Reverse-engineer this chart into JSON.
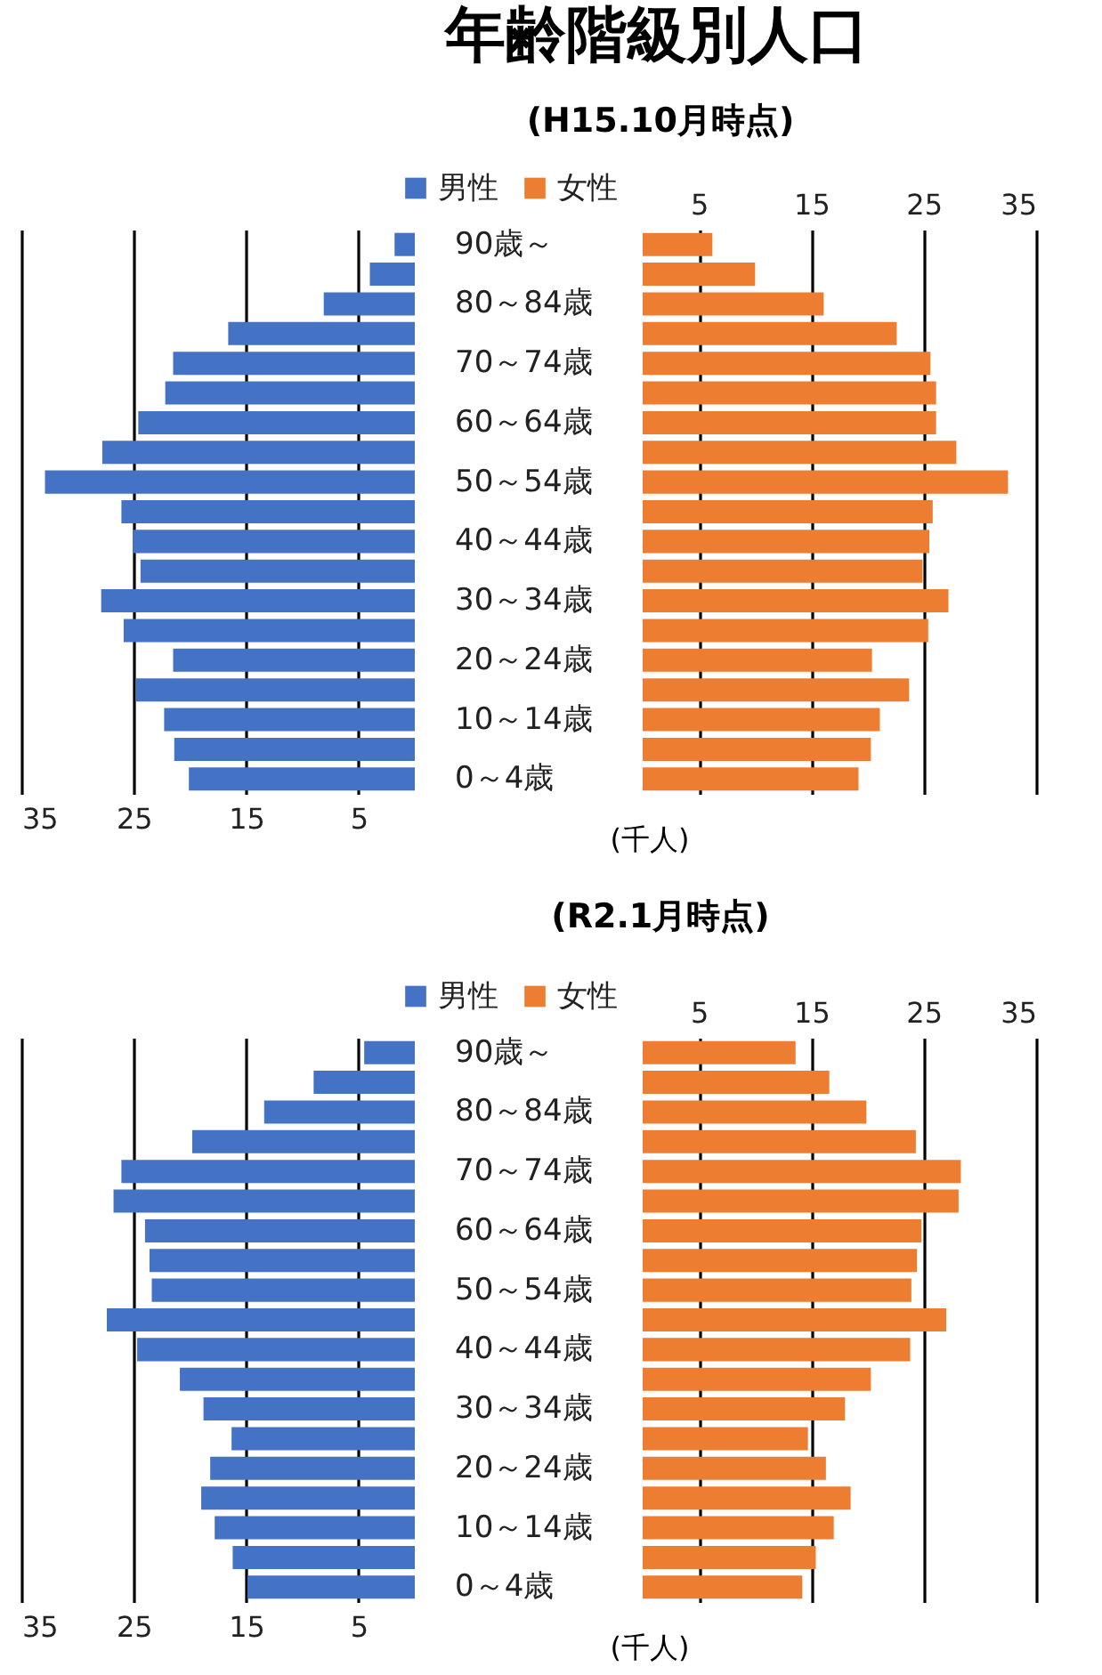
{
  "chart_data": [
    {
      "type": "bar",
      "orientation": "horizontal",
      "categories": [
        null,
        null,
        null,
        null,
        null,
        null,
        null,
        null,
        null,
        null,
        null,
        null,
        null,
        null,
        null,
        null,
        null,
        null,
        null
      ],
      "series": [
        {
          "name": "男性",
          "color": "#4472c4",
          "values": [
            1.8,
            4.0,
            8.1,
            16.6,
            21.5,
            22.2,
            24.6,
            27.8,
            32.9,
            26.1,
            25.1,
            24.4,
            27.9,
            25.9,
            21.5,
            24.8,
            22.3,
            21.4,
            20.1
          ]
        }
      ],
      "xlim": [
        35,
        0
      ],
      "xticks": [
        35,
        25,
        15,
        5
      ],
      "grid": "x",
      "tick_labels": "x"
    },
    {
      "type": "bar",
      "orientation": "horizontal",
      "title": "年齢階級別人口",
      "subtitle": "(H15.10月時点)",
      "annotations": [
        "(千人)"
      ],
      "categories": [
        "90歳～",
        null,
        "80～84歳",
        null,
        "70～74歳",
        null,
        "60～64歳",
        null,
        "50～54歳",
        null,
        "40～44歳",
        null,
        "30～34歳",
        null,
        "20～24歳",
        null,
        "10～14歳",
        null,
        "0～4歳"
      ],
      "series": [
        {
          "name": "女性",
          "color": "#ed7d31",
          "values": [
            6.2,
            10.0,
            16.1,
            22.6,
            25.6,
            26.1,
            26.1,
            27.9,
            32.5,
            25.8,
            25.5,
            24.9,
            27.2,
            25.4,
            20.4,
            23.7,
            21.1,
            20.3,
            19.2
          ]
        }
      ],
      "xlim": [
        0,
        35
      ],
      "xticks": [
        5,
        15,
        25,
        35
      ],
      "grid": "x",
      "legend": "top"
    },
    {
      "type": "bar",
      "orientation": "horizontal",
      "categories": [
        null,
        null,
        null,
        null,
        null,
        null,
        null,
        null,
        null,
        null,
        null,
        null,
        null,
        null,
        null,
        null,
        null,
        null,
        null
      ],
      "series": [
        {
          "name": "男性",
          "color": "#4472c4",
          "values": [
            4.5,
            9.0,
            13.4,
            19.8,
            26.1,
            26.8,
            24.0,
            23.6,
            23.4,
            27.4,
            24.7,
            20.9,
            18.8,
            16.3,
            18.2,
            19.0,
            17.8,
            16.2,
            14.9
          ]
        }
      ],
      "xlim": [
        35,
        0
      ],
      "xticks": [
        35,
        25,
        15,
        5
      ],
      "grid": "x",
      "tick_labels": "x"
    },
    {
      "type": "bar",
      "orientation": "horizontal",
      "subtitle": "(R2.1月時点)",
      "annotations": [
        "(千人)"
      ],
      "categories": [
        "90歳～",
        null,
        "80～84歳",
        null,
        "70～74歳",
        null,
        "60～64歳",
        null,
        "50～54歳",
        null,
        "40～44歳",
        null,
        "30～34歳",
        null,
        "20～24歳",
        null,
        "10～14歳",
        null,
        "0～4歳"
      ],
      "series": [
        {
          "name": "女性",
          "color": "#ed7d31",
          "values": [
            13.6,
            16.6,
            19.9,
            24.3,
            28.3,
            28.1,
            24.8,
            24.4,
            23.9,
            27.0,
            23.8,
            20.3,
            18.0,
            14.7,
            16.3,
            18.5,
            17.0,
            15.4,
            14.2
          ]
        }
      ],
      "xlim": [
        0,
        35
      ],
      "xticks": [
        5,
        15,
        25,
        35
      ],
      "grid": "x",
      "legend": "top"
    }
  ]
}
